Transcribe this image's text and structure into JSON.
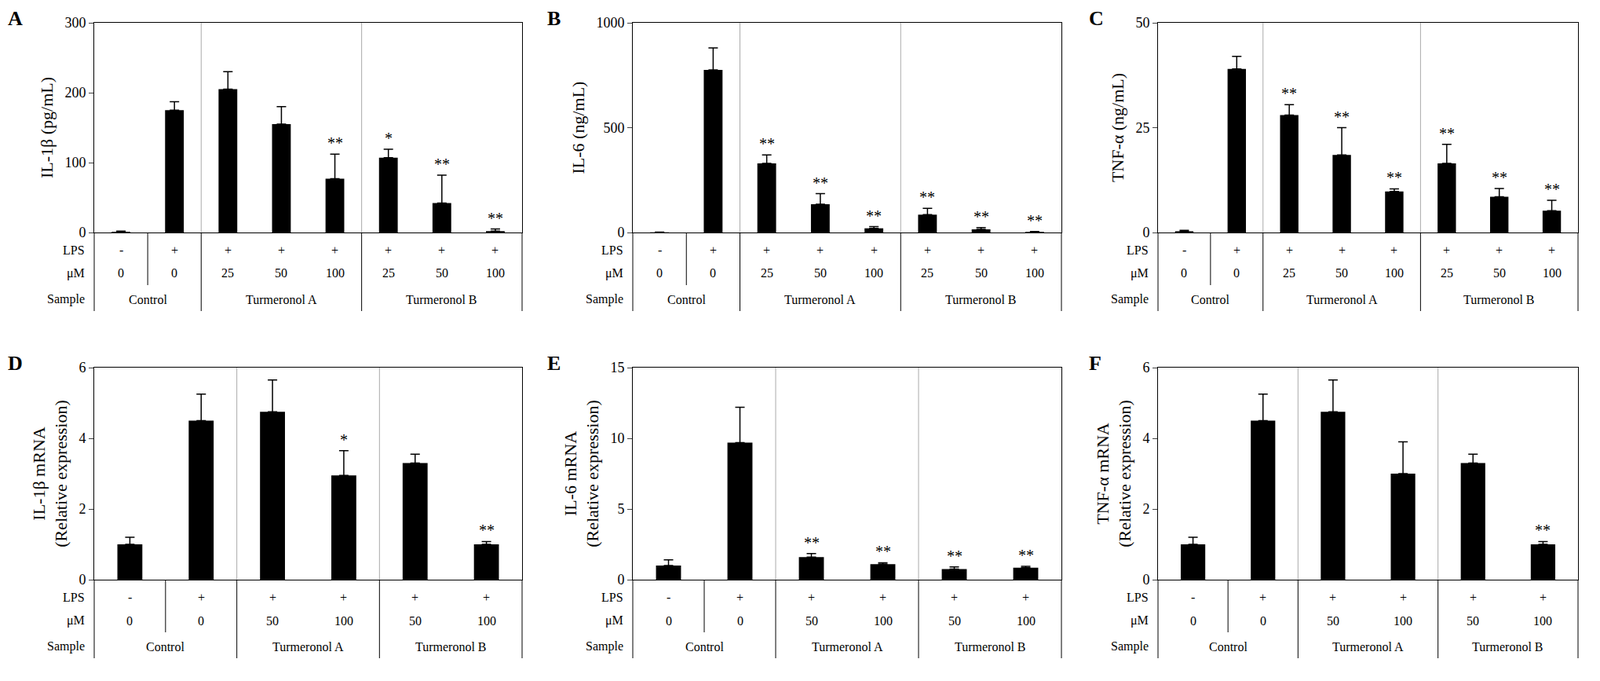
{
  "chart_data": [
    {
      "type": "bar",
      "panel": "A",
      "ylabel": [
        "IL-1β (pg/mL)"
      ],
      "categories": [
        null,
        null,
        null,
        null,
        null,
        null,
        null,
        null
      ],
      "values": [
        1,
        175,
        205,
        155,
        77,
        107,
        42,
        2
      ],
      "errors": [
        1,
        12,
        25,
        25,
        35,
        12,
        40,
        3
      ],
      "significance": [
        null,
        null,
        null,
        null,
        "**",
        "*",
        "**",
        "**"
      ],
      "row_labels": [
        "LPS",
        "μM",
        "Sample"
      ],
      "lps": [
        "-",
        "+",
        "+",
        "+",
        "+",
        "+",
        "+",
        "+"
      ],
      "dose": [
        0,
        0,
        25,
        50,
        100,
        25,
        50,
        100
      ],
      "sample": [
        "Control",
        "Control",
        "Turmeronol A",
        "Turmeronol A",
        "Turmeronol A",
        "Turmeronol B",
        "Turmeronol B",
        "Turmeronol B"
      ],
      "ylim": [
        0,
        300
      ],
      "yticks": [
        0,
        100,
        200,
        300
      ],
      "color": "#000000",
      "grid": false
    },
    {
      "type": "bar",
      "panel": "B",
      "ylabel": [
        "IL-6 (ng/mL)"
      ],
      "categories": [
        null,
        null,
        null,
        null,
        null,
        null,
        null,
        null
      ],
      "values": [
        1,
        775,
        330,
        135,
        20,
        85,
        15,
        3
      ],
      "errors": [
        1,
        105,
        40,
        50,
        8,
        30,
        8,
        2
      ],
      "significance": [
        null,
        null,
        "**",
        "**",
        "**",
        "**",
        "**",
        "**"
      ],
      "row_labels": [
        "LPS",
        "μM",
        "Sample"
      ],
      "lps": [
        "-",
        "+",
        "+",
        "+",
        "+",
        "+",
        "+",
        "+"
      ],
      "dose": [
        0,
        0,
        25,
        50,
        100,
        25,
        50,
        100
      ],
      "sample": [
        "Control",
        "Control",
        "Turmeronol A",
        "Turmeronol A",
        "Turmeronol A",
        "Turmeronol B",
        "Turmeronol B",
        "Turmeronol B"
      ],
      "ylim": [
        0,
        1000
      ],
      "yticks": [
        0,
        500,
        1000
      ],
      "color": "#000000",
      "grid": false
    },
    {
      "type": "bar",
      "panel": "C",
      "ylabel": [
        "TNF-α (ng/mL)"
      ],
      "categories": [
        null,
        null,
        null,
        null,
        null,
        null,
        null,
        null
      ],
      "values": [
        0.3,
        39,
        28,
        18.5,
        9.8,
        16.5,
        8.5,
        5.2
      ],
      "errors": [
        0.2,
        3,
        2.5,
        6.5,
        0.6,
        4.5,
        2,
        2.5
      ],
      "significance": [
        null,
        null,
        "**",
        "**",
        "**",
        "**",
        "**",
        "**"
      ],
      "row_labels": [
        "LPS",
        "μM",
        "Sample"
      ],
      "lps": [
        "-",
        "+",
        "+",
        "+",
        "+",
        "+",
        "+",
        "+"
      ],
      "dose": [
        0,
        0,
        25,
        50,
        100,
        25,
        50,
        100
      ],
      "sample": [
        "Control",
        "Control",
        "Turmeronol A",
        "Turmeronol A",
        "Turmeronol A",
        "Turmeronol B",
        "Turmeronol B",
        "Turmeronol B"
      ],
      "ylim": [
        0,
        50
      ],
      "yticks": [
        0,
        25,
        50
      ],
      "color": "#000000",
      "grid": false
    },
    {
      "type": "bar",
      "panel": "D",
      "ylabel": [
        "IL-1β mRNA",
        "(Relative expression)"
      ],
      "categories": [
        null,
        null,
        null,
        null,
        null,
        null
      ],
      "values": [
        1,
        4.5,
        4.75,
        2.95,
        3.3,
        1.0
      ],
      "errors": [
        0.2,
        0.75,
        0.9,
        0.7,
        0.25,
        0.08
      ],
      "significance": [
        null,
        null,
        null,
        "*",
        null,
        "**"
      ],
      "row_labels": [
        "LPS",
        "μM",
        "Sample"
      ],
      "lps": [
        "-",
        "+",
        "+",
        "+",
        "+",
        "+"
      ],
      "dose": [
        0,
        0,
        50,
        100,
        50,
        100
      ],
      "sample": [
        "Control",
        "Control",
        "Turmeronol A",
        "Turmeronol A",
        "Turmeronol B",
        "Turmeronol B"
      ],
      "ylim": [
        0,
        6
      ],
      "yticks": [
        0,
        2,
        4,
        6
      ],
      "color": "#000000",
      "grid": false
    },
    {
      "type": "bar",
      "panel": "E",
      "ylabel": [
        "IL-6 mRNA",
        "(Relative expression)"
      ],
      "categories": [
        null,
        null,
        null,
        null,
        null,
        null
      ],
      "values": [
        1,
        9.7,
        1.6,
        1.1,
        0.75,
        0.85
      ],
      "errors": [
        0.4,
        2.5,
        0.25,
        0.1,
        0.15,
        0.1
      ],
      "significance": [
        null,
        null,
        "**",
        "**",
        "**",
        "**"
      ],
      "row_labels": [
        "LPS",
        "μM",
        "Sample"
      ],
      "lps": [
        "-",
        "+",
        "+",
        "+",
        "+",
        "+"
      ],
      "dose": [
        0,
        0,
        50,
        100,
        50,
        100
      ],
      "sample": [
        "Control",
        "Control",
        "Turmeronol A",
        "Turmeronol A",
        "Turmeronol B",
        "Turmeronol B"
      ],
      "ylim": [
        0,
        15
      ],
      "yticks": [
        0,
        5,
        10,
        15
      ],
      "color": "#000000",
      "grid": false
    },
    {
      "type": "bar",
      "panel": "F",
      "ylabel": [
        "TNF-α mRNA",
        "(Relative expression)"
      ],
      "categories": [
        null,
        null,
        null,
        null,
        null,
        null
      ],
      "values": [
        1,
        4.5,
        4.75,
        3.0,
        3.3,
        1.0
      ],
      "errors": [
        0.2,
        0.75,
        0.9,
        0.9,
        0.25,
        0.08
      ],
      "significance": [
        null,
        null,
        null,
        null,
        null,
        "**"
      ],
      "row_labels": [
        "LPS",
        "μM",
        "Sample"
      ],
      "lps": [
        "-",
        "+",
        "+",
        "+",
        "+",
        "+"
      ],
      "dose": [
        0,
        0,
        50,
        100,
        50,
        100
      ],
      "sample": [
        "Control",
        "Control",
        "Turmeronol A",
        "Turmeronol A",
        "Turmeronol B",
        "Turmeronol B"
      ],
      "ylim": [
        0,
        6
      ],
      "yticks": [
        0,
        2,
        4,
        6
      ],
      "color": "#000000",
      "grid": false
    }
  ]
}
